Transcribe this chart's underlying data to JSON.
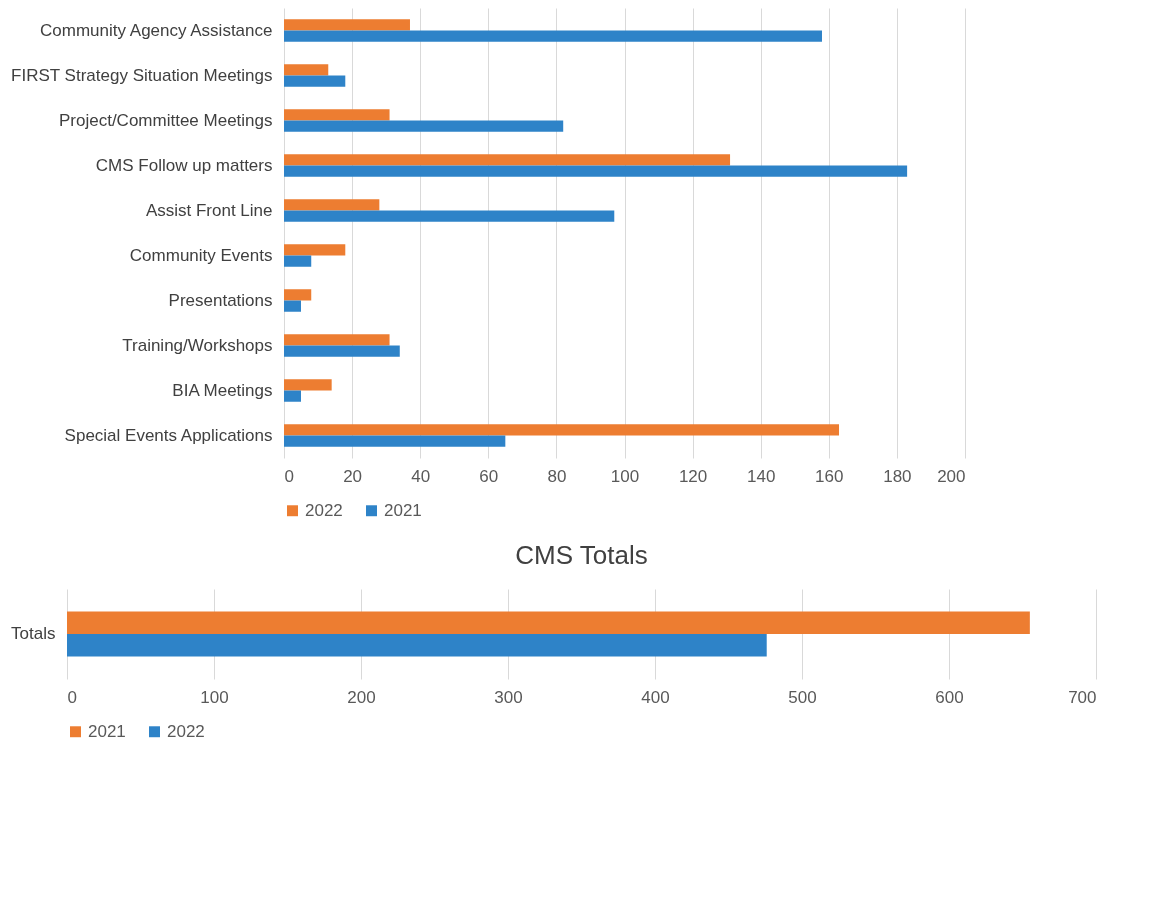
{
  "chart_data": [
    {
      "type": "bar",
      "orientation": "horizontal",
      "categories": [
        "Community Agency Assistance",
        "FIRST Strategy Situation Meetings",
        "Project/Committee Meetings",
        "CMS Follow up matters",
        "Assist Front Line",
        "Community Events",
        "Presentations",
        "Training/Workshops",
        "BIA Meetings",
        "Special Events Applications"
      ],
      "series": [
        {
          "name": "2022",
          "color": "#ed7d31",
          "values": [
            37,
            13,
            31,
            131,
            28,
            18,
            8,
            31,
            14,
            163
          ]
        },
        {
          "name": "2021",
          "color": "#2e83c8",
          "values": [
            158,
            18,
            82,
            183,
            97,
            8,
            5,
            34,
            5,
            65
          ]
        }
      ],
      "xlim": [
        0,
        200
      ],
      "xticks": [
        0,
        20,
        40,
        60,
        80,
        100,
        120,
        140,
        160,
        180,
        200
      ],
      "grid": "x",
      "legend": "bottom"
    },
    {
      "type": "bar",
      "orientation": "horizontal",
      "title": "CMS Totals",
      "categories": [
        "Totals"
      ],
      "series": [
        {
          "name": "2021",
          "color": "#ed7d31",
          "values": [
            655
          ]
        },
        {
          "name": "2022",
          "color": "#2e83c8",
          "values": [
            476
          ]
        }
      ],
      "xlim": [
        0,
        700
      ],
      "xticks": [
        0,
        100,
        200,
        300,
        400,
        500,
        600,
        700
      ],
      "grid": "x",
      "legend": "bottom"
    }
  ]
}
